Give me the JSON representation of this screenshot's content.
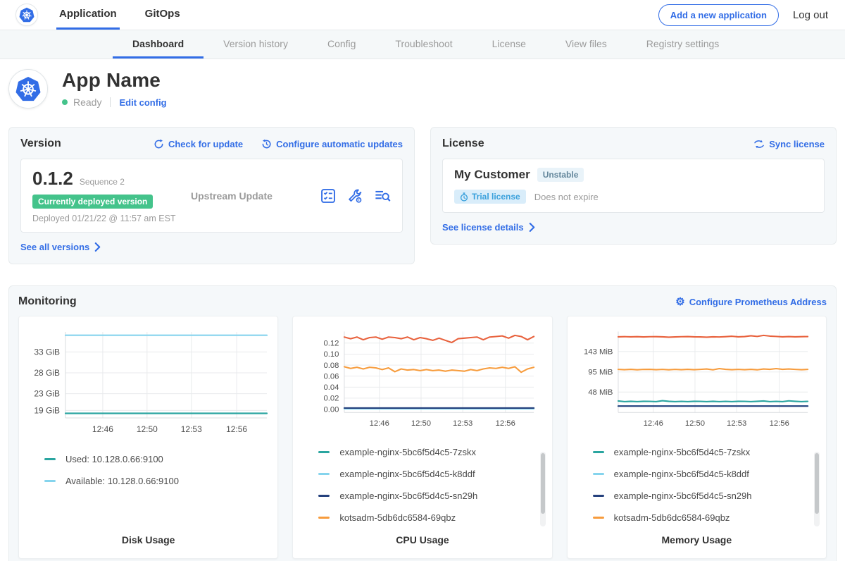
{
  "topnav": {
    "items": [
      {
        "label": "Application",
        "active": true
      },
      {
        "label": "GitOps",
        "active": false
      }
    ],
    "add_app_button": "Add a new application",
    "logout": "Log out"
  },
  "subnav": {
    "tabs": [
      {
        "label": "Dashboard",
        "active": true
      },
      {
        "label": "Version history",
        "active": false
      },
      {
        "label": "Config",
        "active": false
      },
      {
        "label": "Troubleshoot",
        "active": false
      },
      {
        "label": "License",
        "active": false
      },
      {
        "label": "View files",
        "active": false
      },
      {
        "label": "Registry settings",
        "active": false
      }
    ]
  },
  "app_header": {
    "title": "App Name",
    "status": "Ready",
    "edit_config": "Edit config"
  },
  "version_card": {
    "title": "Version",
    "check_for_update": "Check for update",
    "configure_updates": "Configure automatic updates",
    "version_number": "0.1.2",
    "sequence": "Sequence 2",
    "deployed_badge": "Currently deployed version",
    "deployed_at": "Deployed 01/21/22 @ 11:57 am EST",
    "source": "Upstream Update",
    "see_all": "See all versions"
  },
  "license_card": {
    "title": "License",
    "sync": "Sync license",
    "customer": "My Customer",
    "channel": "Unstable",
    "type_badge": "Trial license",
    "expiry": "Does not expire",
    "details": "See license details"
  },
  "monitoring": {
    "title": "Monitoring",
    "configure_link": "Configure Prometheus Address"
  },
  "icons": {
    "brand": "kubernetes-logo",
    "version_actions": [
      "preflight-checklist-icon",
      "wrench-gear-icon",
      "view-logs-icon"
    ],
    "check_update": "refresh-circular-arrow-icon",
    "configure_updates": "clock-history-icon",
    "sync_license": "sync-arrows-icon",
    "trial": "stopwatch-icon",
    "configure_prometheus": "gear-icon",
    "see_more": "chevron-right-icon"
  },
  "colors": {
    "accent_blue": "#326de6",
    "success_green": "#44c38b",
    "panel_bg": "#f5f8fa",
    "text_dark": "#323232",
    "text_gray": "#9b9b9b"
  },
  "chart_data": [
    {
      "type": "line",
      "title": "Disk Usage",
      "x_ticks": [
        "12:46",
        "12:50",
        "12:53",
        "12:56"
      ],
      "x_tick_pos": [
        0.185,
        0.405,
        0.625,
        0.85
      ],
      "y_ticks": [
        {
          "value": 19,
          "label": "19 GiB"
        },
        {
          "value": 23,
          "label": "23 GiB"
        },
        {
          "value": 28,
          "label": "28 GiB"
        },
        {
          "value": 33,
          "label": "33 GiB"
        }
      ],
      "ylim": [
        17.2,
        37.8
      ],
      "grid": true,
      "legend_position": "bottom-left",
      "scrollbar": false,
      "series": [
        {
          "name": "Used: 10.128.0.66:9100",
          "color": "#2aa5a0",
          "value": 18.3
        },
        {
          "name": "Available: 10.128.0.66:9100",
          "color": "#85d4ed",
          "value": 37.0
        }
      ]
    },
    {
      "type": "line",
      "title": "CPU Usage",
      "x_ticks": [
        "12:46",
        "12:50",
        "12:53",
        "12:56"
      ],
      "x_tick_pos": [
        0.185,
        0.405,
        0.625,
        0.85
      ],
      "y_ticks": [
        {
          "value": 0.0,
          "label": "0.00"
        },
        {
          "value": 0.02,
          "label": "0.02"
        },
        {
          "value": 0.04,
          "label": "0.04"
        },
        {
          "value": 0.06,
          "label": "0.06"
        },
        {
          "value": 0.08,
          "label": "0.08"
        },
        {
          "value": 0.1,
          "label": "0.10"
        },
        {
          "value": 0.12,
          "label": "0.12"
        }
      ],
      "ylim": [
        -0.006,
        0.141
      ],
      "grid": true,
      "legend_position": "bottom-left",
      "scrollbar": true,
      "series": [
        {
          "name": "example-nginx-5bc6f5d4c5-7zskx",
          "color": "#2aa5a0",
          "value": 0.0012
        },
        {
          "name": "example-nginx-5bc6f5d4c5-k8ddf",
          "color": "#85d4ed",
          "value": 0.0006
        },
        {
          "name": "example-nginx-5bc6f5d4c5-sn29h",
          "color": "#25417d",
          "value": 0.0021
        },
        {
          "name": "kotsadm-5db6dc6584-69qbz",
          "color": "#f79c3d",
          "points": [
            0.077,
            0.074,
            0.076,
            0.073,
            0.076,
            0.075,
            0.072,
            0.075,
            0.068,
            0.073,
            0.071,
            0.072,
            0.07,
            0.072,
            0.07,
            0.071,
            0.069,
            0.071,
            0.07,
            0.069,
            0.072,
            0.07,
            0.073,
            0.075,
            0.074,
            0.076,
            0.074,
            0.077,
            0.067,
            0.073,
            0.076
          ]
        },
        {
          "name": "",
          "legend": false,
          "color": "#e8613c",
          "points": [
            0.131,
            0.128,
            0.131,
            0.126,
            0.13,
            0.131,
            0.127,
            0.131,
            0.13,
            0.128,
            0.131,
            0.126,
            0.13,
            0.128,
            0.125,
            0.129,
            0.125,
            0.121,
            0.128,
            0.129,
            0.13,
            0.131,
            0.126,
            0.131,
            0.132,
            0.133,
            0.129,
            0.134,
            0.132,
            0.126,
            0.132
          ]
        }
      ]
    },
    {
      "type": "line",
      "title": "Memory Usage",
      "x_ticks": [
        "12:46",
        "12:50",
        "12:53",
        "12:56"
      ],
      "x_tick_pos": [
        0.185,
        0.405,
        0.625,
        0.85
      ],
      "y_ticks": [
        {
          "value": 48,
          "label": "48 MiB"
        },
        {
          "value": 95,
          "label": "95 MiB"
        },
        {
          "value": 143,
          "label": "143 MiB"
        }
      ],
      "ylim": [
        0,
        190
      ],
      "grid": true,
      "legend_position": "bottom-left",
      "scrollbar": true,
      "series": [
        {
          "name": "example-nginx-5bc6f5d4c5-7zskx",
          "color": "#2aa5a0",
          "points": [
            27,
            25.4,
            26.2,
            25.4,
            26.2,
            26,
            25.4,
            27.6,
            26.2,
            25.4,
            26,
            25.4,
            26.2,
            26,
            25.4,
            26.2,
            25.4,
            26,
            25.4,
            26.2,
            26,
            25.4,
            26.2,
            27,
            25.4,
            26,
            25.4,
            27.2,
            26.2,
            25.4,
            26
          ]
        },
        {
          "name": "example-nginx-5bc6f5d4c5-k8ddf",
          "color": "#85d4ed",
          "value": 15.3
        },
        {
          "name": "example-nginx-5bc6f5d4c5-sn29h",
          "color": "#25417d",
          "value": 15.0
        },
        {
          "name": "kotsadm-5db6dc6584-69qbz",
          "color": "#f79c3d",
          "points": [
            101,
            100.4,
            101.2,
            100.2,
            101,
            101.2,
            100.4,
            101,
            100.2,
            101,
            100.4,
            101.2,
            100.4,
            101,
            102,
            100.2,
            103,
            101.2,
            100.4,
            101,
            100.4,
            101.2,
            100.2,
            102,
            101.2,
            103,
            101.2,
            102,
            101,
            100.4,
            101
          ]
        },
        {
          "name": "",
          "legend": false,
          "color": "#e8613c",
          "points": [
            177.5,
            178,
            177.6,
            178,
            177.4,
            177.8,
            178,
            177.5,
            176.8,
            177.4,
            177.8,
            178.2,
            177.6,
            177.4,
            176.8,
            177.5,
            177.2,
            178,
            179,
            177.5,
            178.2,
            180,
            178.4,
            181,
            179.2,
            178.4,
            177.6,
            178.2,
            177.6,
            178,
            178.2
          ]
        }
      ]
    }
  ]
}
